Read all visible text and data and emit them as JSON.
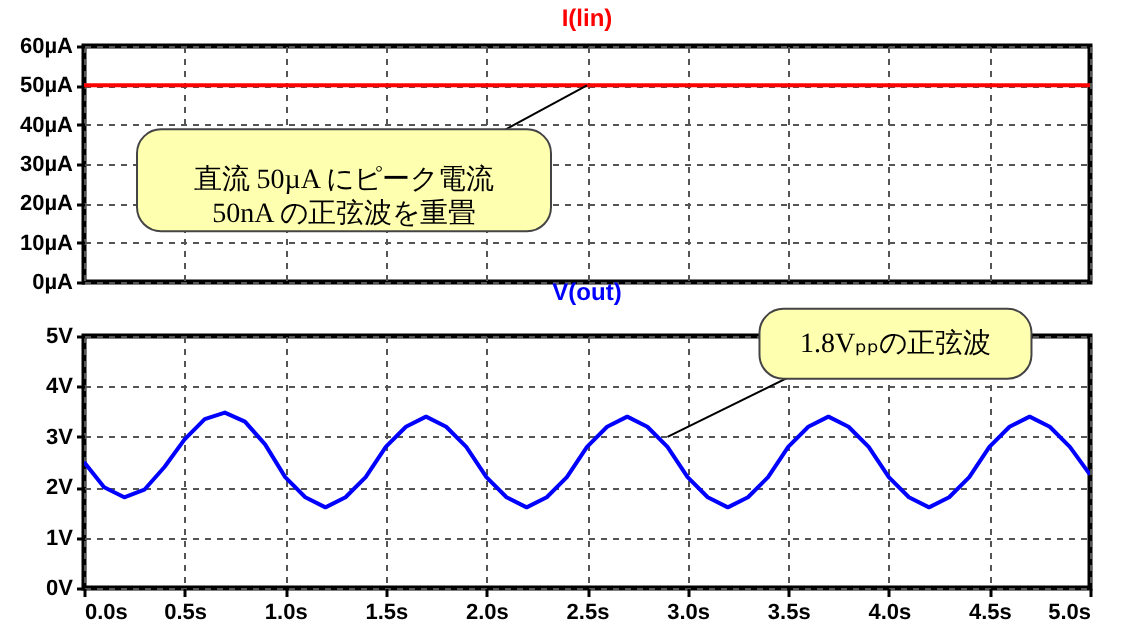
{
  "chart_data": [
    {
      "type": "line",
      "title": "I(lin)",
      "xlim": [
        0,
        5
      ],
      "xticks": [
        0,
        0.5,
        1,
        1.5,
        2,
        2.5,
        3,
        3.5,
        4,
        4.5,
        5
      ],
      "ylim": [
        0,
        60
      ],
      "yticks": [
        {
          "value": 0,
          "label": "0µA"
        },
        {
          "value": 10,
          "label": "10µA"
        },
        {
          "value": 20,
          "label": "20µA"
        },
        {
          "value": 30,
          "label": "30µA"
        },
        {
          "value": 40,
          "label": "40µA"
        },
        {
          "value": 50,
          "label": "50µA"
        },
        {
          "value": 60,
          "label": "60µA"
        }
      ],
      "tick_labels": "y",
      "grid": true,
      "series": [
        {
          "color": "#ff0000",
          "x": [
            0,
            5
          ],
          "values": [
            50,
            50
          ]
        }
      ],
      "annotations": [
        {
          "text": "直流 50µA にピーク電流\n50nA の正弦波を重畳",
          "x": 2.5,
          "y": 50
        }
      ]
    },
    {
      "type": "line",
      "title": "V(out)",
      "xlim": [
        0,
        5
      ],
      "xticks": [
        {
          "value": 0,
          "label": "0.0s"
        },
        {
          "value": 0.5,
          "label": "0.5s"
        },
        {
          "value": 1,
          "label": "1.0s"
        },
        {
          "value": 1.5,
          "label": "1.5s"
        },
        {
          "value": 2,
          "label": "2.0s"
        },
        {
          "value": 2.5,
          "label": "2.5s"
        },
        {
          "value": 3,
          "label": "3.0s"
        },
        {
          "value": 3.5,
          "label": "3.5s"
        },
        {
          "value": 4,
          "label": "4.0s"
        },
        {
          "value": 4.5,
          "label": "4.5s"
        },
        {
          "value": 5,
          "label": "5.0s"
        }
      ],
      "ylim": [
        0,
        5
      ],
      "yticks": [
        {
          "value": 0,
          "label": "0V"
        },
        {
          "value": 1,
          "label": "1V"
        },
        {
          "value": 2,
          "label": "2V"
        },
        {
          "value": 3,
          "label": "3V"
        },
        {
          "value": 4,
          "label": "4V"
        },
        {
          "value": 5,
          "label": "5V"
        }
      ],
      "grid": true,
      "series": [
        {
          "color": "#0000ff",
          "x": [
            0,
            0.1,
            0.2,
            0.3,
            0.4,
            0.5,
            0.6,
            0.7,
            0.8,
            0.9,
            1,
            1.1,
            1.2,
            1.3,
            1.4,
            1.5,
            1.6,
            1.7,
            1.8,
            1.9,
            2,
            2.1,
            2.2,
            2.3,
            2.4,
            2.5,
            2.6,
            2.7,
            2.8,
            2.9,
            3,
            3.1,
            3.2,
            3.3,
            3.4,
            3.5,
            3.6,
            3.7,
            3.8,
            3.9,
            4,
            4.1,
            4.2,
            4.3,
            4.4,
            4.5,
            4.6,
            4.7,
            4.8,
            4.9,
            5
          ],
          "values": [
            2.5,
            2.0,
            1.8,
            1.95,
            2.4,
            2.95,
            3.35,
            3.48,
            3.3,
            2.85,
            2.2,
            1.8,
            1.6,
            1.8,
            2.2,
            2.8,
            3.2,
            3.4,
            3.2,
            2.8,
            2.2,
            1.8,
            1.6,
            1.8,
            2.2,
            2.8,
            3.2,
            3.4,
            3.2,
            2.8,
            2.2,
            1.8,
            1.6,
            1.8,
            2.2,
            2.8,
            3.2,
            3.4,
            3.2,
            2.8,
            2.2,
            1.8,
            1.6,
            1.8,
            2.2,
            2.8,
            3.2,
            3.4,
            3.2,
            2.8,
            2.25
          ]
        }
      ],
      "annotations": [
        {
          "text": "1.8Vₚₚの正弦波",
          "x": 2.9,
          "y": 3.0
        }
      ]
    }
  ]
}
